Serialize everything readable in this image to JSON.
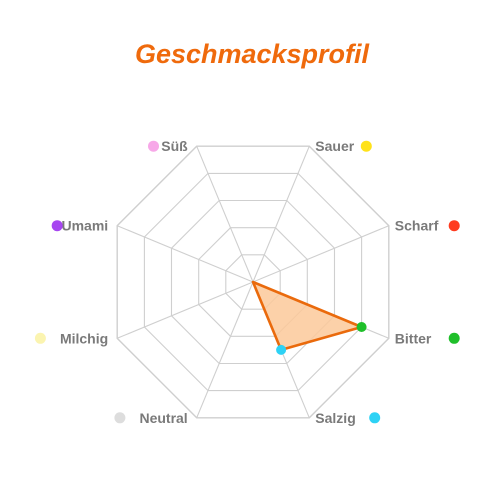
{
  "chart_data": {
    "type": "radar",
    "title": "Geschmacksprofil",
    "axes": [
      {
        "name": "Süß",
        "color": "#f7a8e8"
      },
      {
        "name": "Sauer",
        "color": "#ffe21a"
      },
      {
        "name": "Scharf",
        "color": "#ff3b1f"
      },
      {
        "name": "Bitter",
        "color": "#1fbf2a"
      },
      {
        "name": "Salzig",
        "color": "#2dd2f5"
      },
      {
        "name": "Neutral",
        "color": "#dddddd"
      },
      {
        "name": "Milchig",
        "color": "#fbf4b0"
      },
      {
        "name": "Umami",
        "color": "#a646f0"
      }
    ],
    "rlim": [
      0,
      5
    ],
    "rings": 5,
    "values": [
      0,
      0,
      0,
      4,
      2.5,
      0,
      0,
      0
    ],
    "fill_color": "#fbc99a",
    "line_color": "#ea6a0c",
    "grid_color": "#cfcfcf",
    "title_color": "#ef6a0c",
    "grid": true,
    "legend": "none"
  }
}
